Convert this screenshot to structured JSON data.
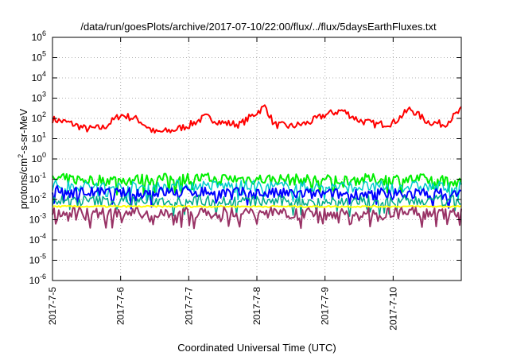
{
  "chart_data": {
    "type": "line",
    "title": "/data/run/goesPlots/archive/2017-07-10/22:00/flux/../flux/5daysEarthFluxes.txt",
    "xlabel": "Coordinated Universal Time (UTC)",
    "ylabel_parts": [
      "protons/cm",
      "2",
      "-s-sr-MeV"
    ],
    "y_scale": "log",
    "ylim": [
      1e-06,
      1000000.0
    ],
    "y_ticks": [
      {
        "base": "10",
        "exp": "-6",
        "value": 1e-06
      },
      {
        "base": "10",
        "exp": "-5",
        "value": 1e-05
      },
      {
        "base": "10",
        "exp": "-4",
        "value": 0.0001
      },
      {
        "base": "10",
        "exp": "-3",
        "value": 0.001
      },
      {
        "base": "10",
        "exp": "-2",
        "value": 0.01
      },
      {
        "base": "10",
        "exp": "-1",
        "value": 0.1
      },
      {
        "base": "10",
        "exp": "0",
        "value": 1
      },
      {
        "base": "10",
        "exp": "1",
        "value": 10
      },
      {
        "base": "10",
        "exp": "2",
        "value": 100
      },
      {
        "base": "10",
        "exp": "3",
        "value": 1000
      },
      {
        "base": "10",
        "exp": "4",
        "value": 10000
      },
      {
        "base": "10",
        "exp": "5",
        "value": 100000
      },
      {
        "base": "10",
        "exp": "6",
        "value": 1000000
      }
    ],
    "x_domain": [
      "2017-07-05",
      "2017-07-11"
    ],
    "x_ticks": [
      "2017-7-5",
      "2017-7-6",
      "2017-7-7",
      "2017-7-8",
      "2017-7-9",
      "2017-7-10"
    ],
    "grid": true,
    "legend": "none",
    "series": [
      {
        "color": "#ff0000",
        "width": 2,
        "x": [
          "2017-07-05",
          "2017-07-05T06:00",
          "2017-07-05T12:00",
          "2017-07-05T18:00",
          "2017-07-06",
          "2017-07-06T06:00",
          "2017-07-06T12:00",
          "2017-07-06T18:00",
          "2017-07-07",
          "2017-07-07T06:00",
          "2017-07-07T12:00",
          "2017-07-07T18:00",
          "2017-07-08",
          "2017-07-08T03:00",
          "2017-07-08T06:00",
          "2017-07-08T12:00",
          "2017-07-08T18:00",
          "2017-07-09",
          "2017-07-09T06:00",
          "2017-07-09T12:00",
          "2017-07-09T18:00",
          "2017-07-10",
          "2017-07-10T06:00",
          "2017-07-10T12:00",
          "2017-07-10T18:00",
          "2017-07-11"
        ],
        "y": [
          90,
          60,
          30,
          35,
          150,
          90,
          20,
          25,
          45,
          120,
          60,
          50,
          200,
          400,
          50,
          40,
          60,
          150,
          250,
          80,
          50,
          60,
          300,
          70,
          50,
          260
        ]
      },
      {
        "color": "#00ee00",
        "width": 2,
        "x": [
          "2017-07-05",
          "2017-07-06",
          "2017-07-07",
          "2017-07-08",
          "2017-07-09",
          "2017-07-10",
          "2017-07-11"
        ],
        "y": [
          0.1,
          0.09,
          0.11,
          0.1,
          0.09,
          0.1,
          0.09
        ]
      },
      {
        "color": "#00cccc",
        "width": 1.5,
        "x": [
          "2017-07-05",
          "2017-07-06",
          "2017-07-07",
          "2017-07-08",
          "2017-07-09",
          "2017-07-10",
          "2017-07-11"
        ],
        "y": [
          0.05,
          0.04,
          0.05,
          0.045,
          0.04,
          0.045,
          0.04
        ]
      },
      {
        "color": "#0000ff",
        "width": 2,
        "x": [
          "2017-07-05",
          "2017-07-06",
          "2017-07-07",
          "2017-07-08",
          "2017-07-09",
          "2017-07-10",
          "2017-07-11"
        ],
        "y": [
          0.025,
          0.02,
          0.025,
          0.02,
          0.018,
          0.02,
          0.018
        ]
      },
      {
        "color": "#00aa88",
        "width": 1.5,
        "x": [
          "2017-07-05",
          "2017-07-06",
          "2017-07-07",
          "2017-07-08",
          "2017-07-09",
          "2017-07-10",
          "2017-07-11"
        ],
        "y": [
          0.009,
          0.008,
          0.009,
          0.008,
          0.008,
          0.008,
          0.009
        ]
      },
      {
        "color": "#ffff00",
        "width": 2,
        "x": [
          "2017-07-05",
          "2017-07-11"
        ],
        "y": [
          0.0045,
          0.0045
        ]
      },
      {
        "color": "#993366",
        "width": 2,
        "x": [
          "2017-07-05",
          "2017-07-06",
          "2017-07-07",
          "2017-07-08",
          "2017-07-09",
          "2017-07-10",
          "2017-07-11"
        ],
        "y": [
          0.0022,
          0.0021,
          0.0022,
          0.0022,
          0.0021,
          0.0022,
          0.0021
        ]
      }
    ]
  }
}
